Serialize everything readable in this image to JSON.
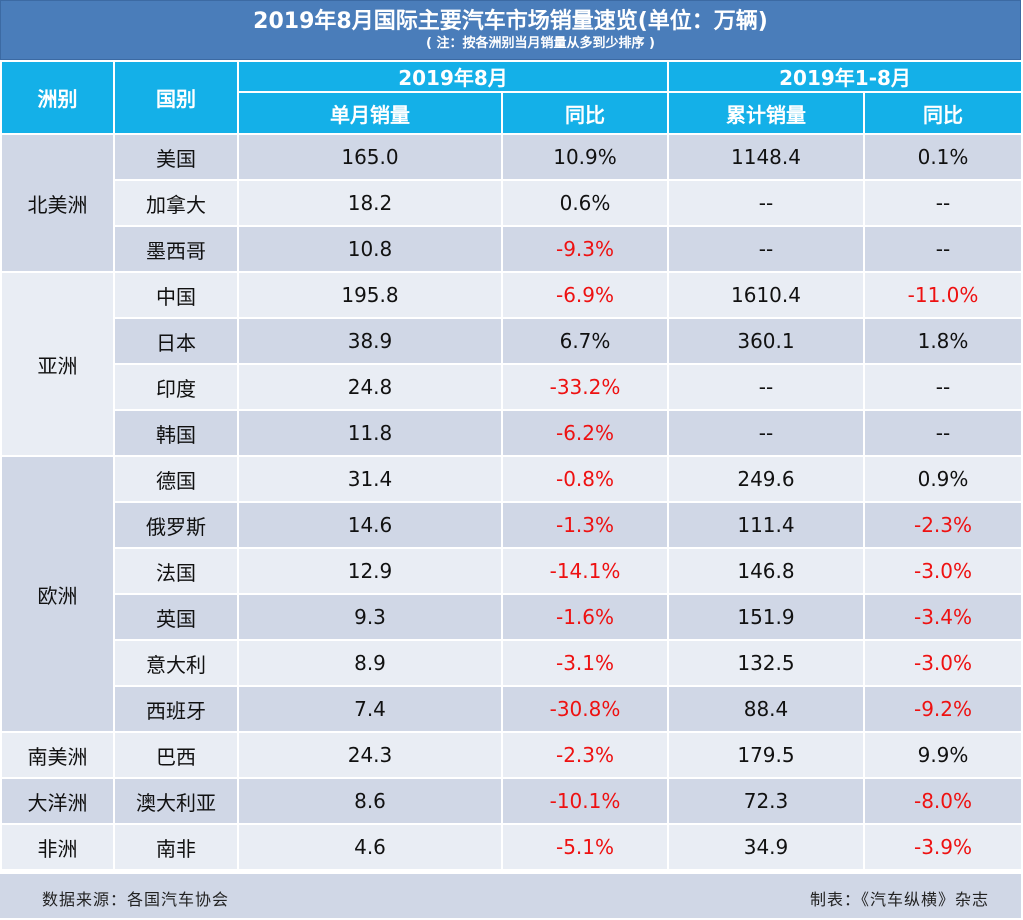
{
  "title": "2019年8月国际主要汽车市场销量速览(单位：万辆)",
  "note": "( 注：按各洲别当月销量从多到少排序 )",
  "headers": {
    "continent": "洲别",
    "country": "国别",
    "aug_group": "2019年8月",
    "ytd_group": "2019年1-8月",
    "monthly_sales": "单月销量",
    "yoy": "同比",
    "cumulative_sales": "累计销量",
    "yoy2": "同比"
  },
  "regions": [
    {
      "name": "北美洲",
      "rows": [
        {
          "country": "美国",
          "aug": "165.0",
          "aug_yoy": "10.9%",
          "ytd": "1148.4",
          "ytd_yoy": "0.1%"
        },
        {
          "country": "加拿大",
          "aug": "18.2",
          "aug_yoy": "0.6%",
          "ytd": "--",
          "ytd_yoy": "--"
        },
        {
          "country": "墨西哥",
          "aug": "10.8",
          "aug_yoy": "-9.3%",
          "ytd": "--",
          "ytd_yoy": "--"
        }
      ]
    },
    {
      "name": "亚洲",
      "rows": [
        {
          "country": "中国",
          "aug": "195.8",
          "aug_yoy": "-6.9%",
          "ytd": "1610.4",
          "ytd_yoy": "-11.0%"
        },
        {
          "country": "日本",
          "aug": "38.9",
          "aug_yoy": "6.7%",
          "ytd": "360.1",
          "ytd_yoy": "1.8%"
        },
        {
          "country": "印度",
          "aug": "24.8",
          "aug_yoy": "-33.2%",
          "ytd": "--",
          "ytd_yoy": "--"
        },
        {
          "country": "韩国",
          "aug": "11.8",
          "aug_yoy": "-6.2%",
          "ytd": "--",
          "ytd_yoy": "--"
        }
      ]
    },
    {
      "name": "欧洲",
      "rows": [
        {
          "country": "德国",
          "aug": "31.4",
          "aug_yoy": "-0.8%",
          "ytd": "249.6",
          "ytd_yoy": "0.9%"
        },
        {
          "country": "俄罗斯",
          "aug": "14.6",
          "aug_yoy": "-1.3%",
          "ytd": "111.4",
          "ytd_yoy": "-2.3%"
        },
        {
          "country": "法国",
          "aug": "12.9",
          "aug_yoy": "-14.1%",
          "ytd": "146.8",
          "ytd_yoy": "-3.0%"
        },
        {
          "country": "英国",
          "aug": "9.3",
          "aug_yoy": "-1.6%",
          "ytd": "151.9",
          "ytd_yoy": "-3.4%"
        },
        {
          "country": "意大利",
          "aug": "8.9",
          "aug_yoy": "-3.1%",
          "ytd": "132.5",
          "ytd_yoy": "-3.0%"
        },
        {
          "country": "西班牙",
          "aug": "7.4",
          "aug_yoy": "-30.8%",
          "ytd": "88.4",
          "ytd_yoy": "-9.2%"
        }
      ]
    },
    {
      "name": "南美洲",
      "rows": [
        {
          "country": "巴西",
          "aug": "24.3",
          "aug_yoy": "-2.3%",
          "ytd": "179.5",
          "ytd_yoy": "9.9%"
        }
      ]
    },
    {
      "name": "大洋洲",
      "rows": [
        {
          "country": "澳大利亚",
          "aug": "8.6",
          "aug_yoy": "-10.1%",
          "ytd": "72.3",
          "ytd_yoy": "-8.0%"
        }
      ]
    },
    {
      "name": "非洲",
      "rows": [
        {
          "country": "南非",
          "aug": "4.6",
          "aug_yoy": "-5.1%",
          "ytd": "34.9",
          "ytd_yoy": "-3.9%"
        }
      ]
    }
  ],
  "footer": {
    "source": "数据来源：各国汽车协会",
    "maker": "制表：《汽车纵横》杂志"
  },
  "colors": {
    "title_bg": "#4a7dba",
    "header_bg": "#14b0e8",
    "row_dark": "#d0d7e6",
    "row_light": "#e9edf4",
    "negative": "#ee1111"
  }
}
